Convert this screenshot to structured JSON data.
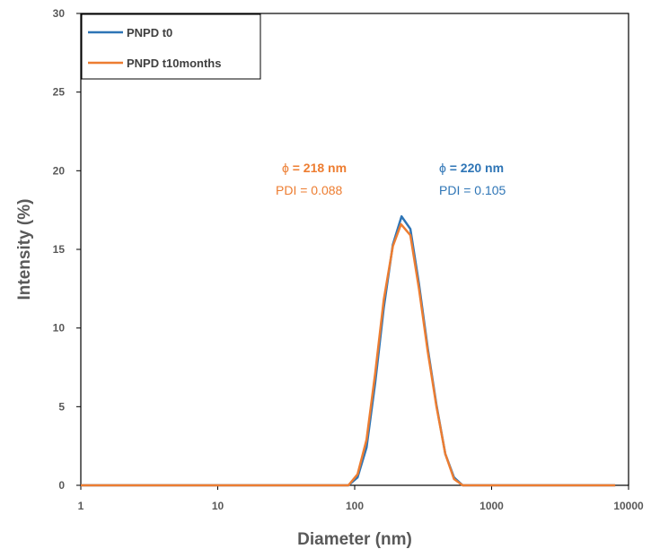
{
  "chart_data": {
    "type": "line",
    "xlabel": "Diameter (nm)",
    "ylabel": "Intensity (%)",
    "xscale": "log",
    "xlim": [
      1,
      10000
    ],
    "ylim": [
      0,
      30
    ],
    "xticks": [
      "1",
      "10",
      "100",
      "1000",
      "10000"
    ],
    "yticks": [
      "0",
      "5",
      "10",
      "15",
      "20",
      "25",
      "30"
    ],
    "grid": false,
    "legend_position": "top-left",
    "series": [
      {
        "name": "PNPD t0",
        "color": "#2E75B6",
        "x": [
          1,
          90,
          105,
          122,
          141,
          163,
          190,
          220,
          255,
          295,
          342,
          396,
          459,
          531,
          615,
          8000
        ],
        "y": [
          0,
          0,
          0.5,
          2.4,
          6.5,
          11.3,
          15.3,
          17.1,
          16.3,
          12.8,
          8.7,
          5.1,
          2.0,
          0.5,
          0,
          0
        ]
      },
      {
        "name": "PNPD t10months",
        "color": "#ED7D31",
        "x": [
          1,
          90,
          105,
          122,
          141,
          163,
          190,
          218,
          255,
          295,
          342,
          396,
          459,
          531,
          615,
          8000
        ],
        "y": [
          0,
          0,
          0.7,
          2.9,
          7.1,
          11.8,
          15.2,
          16.6,
          15.9,
          12.5,
          8.5,
          5.0,
          2.0,
          0.4,
          0,
          0
        ]
      }
    ],
    "annotations": [
      {
        "phi": "ϕ",
        "size": " = 218 nm",
        "pdi": "PDI = 0.088",
        "color": "#ED7D31"
      },
      {
        "phi": "ϕ",
        "size": " = 220 nm",
        "pdi": "PDI = 0.105",
        "color": "#2E75B6"
      }
    ]
  }
}
